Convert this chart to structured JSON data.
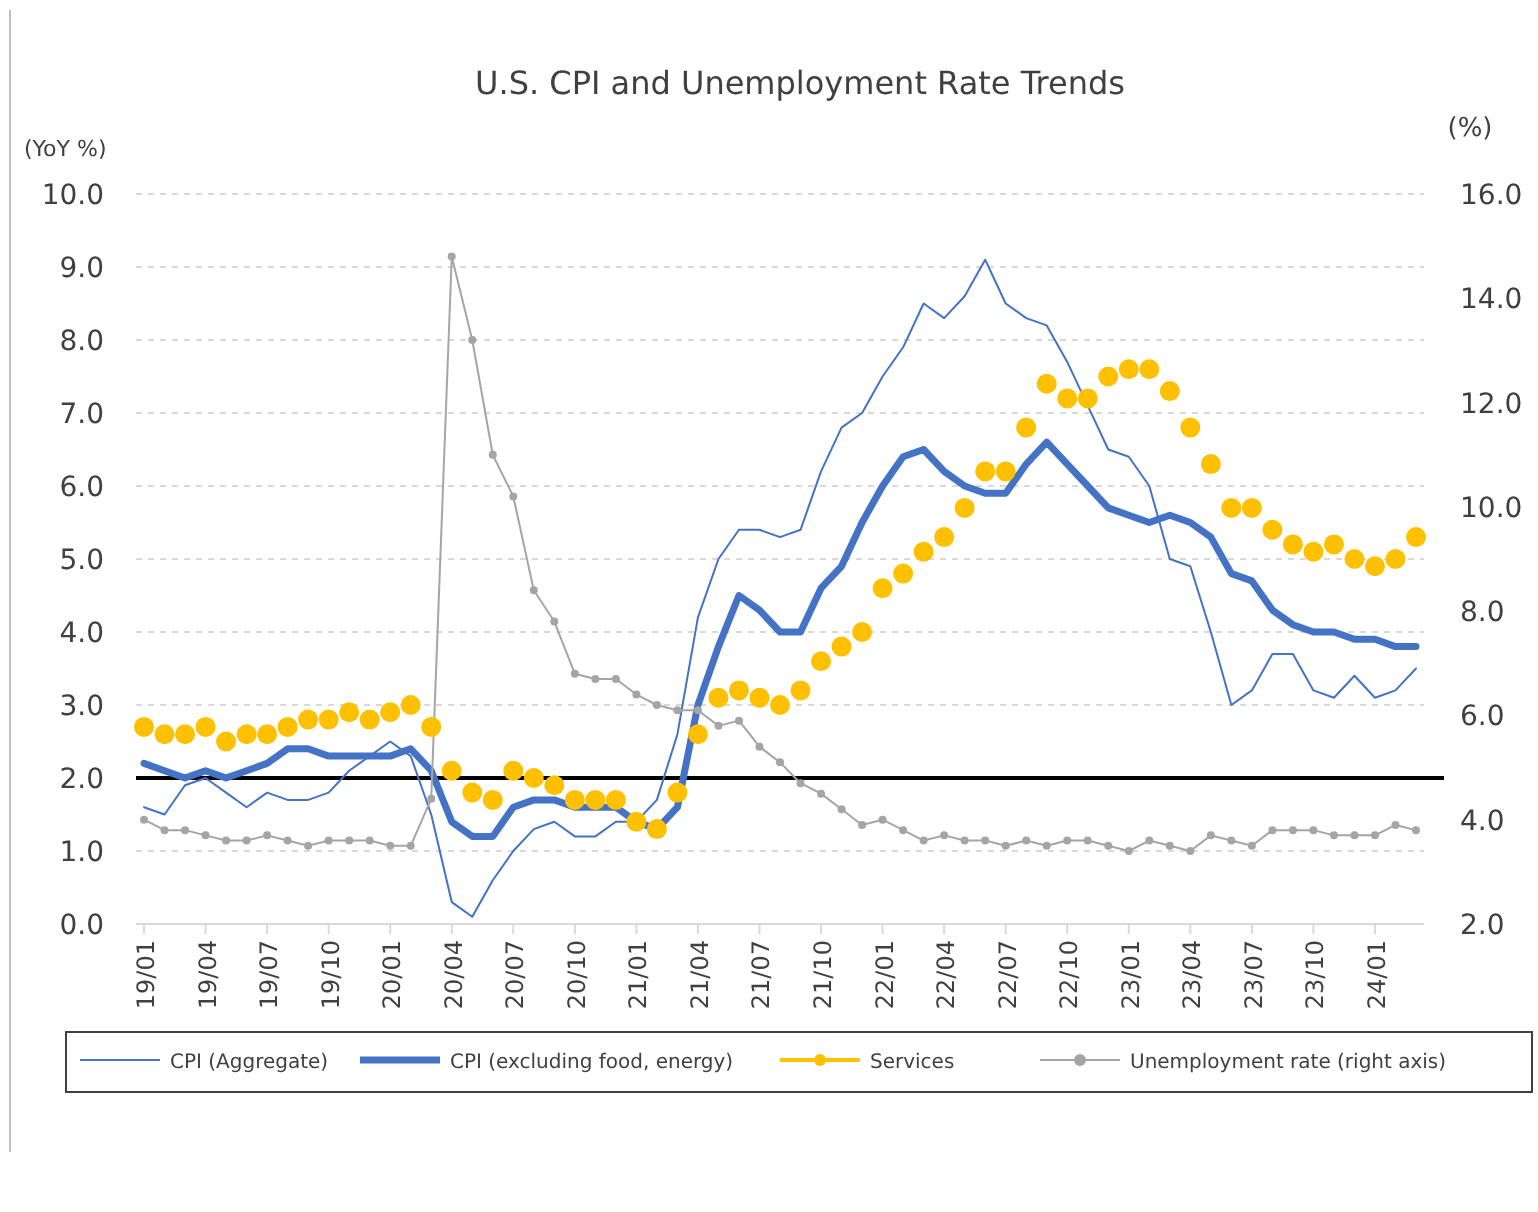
{
  "chart_data": {
    "type": "line",
    "title": "U.S. CPI and Unemployment Rate Trends",
    "ylabel": "(YoY %)",
    "y2label": "(%)",
    "categories": [
      "19/01",
      null,
      null,
      "19/04",
      null,
      null,
      "19/07",
      null,
      null,
      "19/10",
      null,
      null,
      "20/01",
      null,
      null,
      "20/04",
      null,
      null,
      "20/07",
      null,
      null,
      "20/10",
      null,
      null,
      "21/01",
      null,
      null,
      "21/04",
      null,
      null,
      "21/07",
      null,
      null,
      "21/10",
      null,
      null,
      "22/01",
      null,
      null,
      "22/04",
      null,
      null,
      "22/07",
      null,
      null,
      "22/10",
      null,
      null,
      "23/01",
      null,
      null,
      "23/04",
      null,
      null,
      "23/07",
      null,
      null,
      "23/10",
      null,
      null,
      "24/01",
      null,
      null
    ],
    "series": [
      {
        "name": "CPI (Aggregate)",
        "color": "#4472c4",
        "marker": "none",
        "values": [
          1.6,
          1.5,
          1.9,
          2.0,
          1.8,
          1.6,
          1.8,
          1.7,
          1.7,
          1.8,
          2.1,
          2.3,
          2.5,
          2.3,
          1.5,
          0.3,
          0.1,
          0.6,
          1.0,
          1.3,
          1.4,
          1.2,
          1.2,
          1.4,
          1.4,
          1.7,
          2.6,
          4.2,
          5.0,
          5.4,
          5.4,
          5.3,
          5.4,
          6.2,
          6.8,
          7.0,
          7.5,
          7.9,
          8.5,
          8.3,
          8.6,
          9.1,
          8.5,
          8.3,
          8.2,
          7.7,
          7.1,
          6.5,
          6.4,
          6.0,
          5.0,
          4.9,
          4.0,
          3.0,
          3.2,
          3.7,
          3.7,
          3.2,
          3.1,
          3.4,
          3.1,
          3.2,
          3.5
        ]
      },
      {
        "name": "CPI (excluding food, energy)",
        "color": "#4472c4",
        "marker": "none",
        "values": [
          2.2,
          2.1,
          2.0,
          2.1,
          2.0,
          2.1,
          2.2,
          2.4,
          2.4,
          2.3,
          2.3,
          2.3,
          2.3,
          2.4,
          2.1,
          1.4,
          1.2,
          1.2,
          1.6,
          1.7,
          1.7,
          1.6,
          1.6,
          1.6,
          1.4,
          1.3,
          1.6,
          3.0,
          3.8,
          4.5,
          4.3,
          4.0,
          4.0,
          4.6,
          4.9,
          5.5,
          6.0,
          6.4,
          6.5,
          6.2,
          6.0,
          5.9,
          5.9,
          6.3,
          6.6,
          6.3,
          6.0,
          5.7,
          5.6,
          5.5,
          5.6,
          5.5,
          5.3,
          4.8,
          4.7,
          4.3,
          4.1,
          4.0,
          4.0,
          3.9,
          3.9,
          3.8,
          3.8
        ]
      },
      {
        "name": "Services",
        "type": "scatter",
        "color": "#ffc000",
        "marker": "circle",
        "values": [
          2.7,
          2.6,
          2.6,
          2.7,
          2.5,
          2.6,
          2.6,
          2.7,
          2.8,
          2.8,
          2.9,
          2.8,
          2.9,
          3.0,
          2.7,
          2.1,
          1.8,
          1.7,
          2.1,
          2.0,
          1.9,
          1.7,
          1.7,
          1.7,
          1.4,
          1.3,
          1.8,
          2.6,
          3.1,
          3.2,
          3.1,
          3.0,
          3.2,
          3.6,
          3.8,
          4.0,
          4.6,
          4.8,
          5.1,
          5.3,
          5.7,
          6.2,
          6.2,
          6.8,
          7.4,
          7.2,
          7.2,
          7.5,
          7.6,
          7.6,
          7.3,
          6.8,
          6.3,
          5.7,
          5.7,
          5.4,
          5.2,
          5.1,
          5.2,
          5.0,
          4.9,
          5.0,
          5.3
        ]
      },
      {
        "name": "Unemployment rate (right axis)",
        "axis": "y2",
        "color": "#a5a5a5",
        "marker": "circle",
        "values": [
          4.0,
          3.8,
          3.8,
          3.7,
          3.6,
          3.6,
          3.7,
          3.6,
          3.5,
          3.6,
          3.6,
          3.6,
          3.5,
          3.5,
          4.4,
          14.8,
          13.2,
          11.0,
          10.2,
          8.4,
          7.8,
          6.8,
          6.7,
          6.7,
          6.4,
          6.2,
          6.1,
          6.1,
          5.8,
          5.9,
          5.4,
          5.1,
          4.7,
          4.5,
          4.2,
          3.9,
          4.0,
          3.8,
          3.6,
          3.7,
          3.6,
          3.6,
          3.5,
          3.6,
          3.5,
          3.6,
          3.6,
          3.5,
          3.4,
          3.6,
          3.5,
          3.4,
          3.7,
          3.6,
          3.5,
          3.8,
          3.8,
          3.8,
          3.7,
          3.7,
          3.7,
          3.9,
          3.8
        ]
      }
    ],
    "ylim": [
      0,
      10
    ],
    "yticks": [
      {
        "value": 0,
        "label": "0.0"
      },
      {
        "value": 1,
        "label": "1.0"
      },
      {
        "value": 2,
        "label": "2.0"
      },
      {
        "value": 3,
        "label": "3.0"
      },
      {
        "value": 4,
        "label": "4.0"
      },
      {
        "value": 5,
        "label": "5.0"
      },
      {
        "value": 6,
        "label": "6.0"
      },
      {
        "value": 7,
        "label": "7.0"
      },
      {
        "value": 8,
        "label": "8.0"
      },
      {
        "value": 9,
        "label": "9.0"
      },
      {
        "value": 10,
        "label": "10.0"
      }
    ],
    "y2lim": [
      2,
      16
    ],
    "y2ticks": [
      {
        "value": 2,
        "label": "2.0"
      },
      {
        "value": 4,
        "label": "4.0"
      },
      {
        "value": 6,
        "label": "6.0"
      },
      {
        "value": 8,
        "label": "8.0"
      },
      {
        "value": 10,
        "label": "10.0"
      },
      {
        "value": 12,
        "label": "12.0"
      },
      {
        "value": 14,
        "label": "14.0"
      },
      {
        "value": 16,
        "label": "16.0"
      }
    ],
    "ref_lines": [
      {
        "axis": "y",
        "value": 2,
        "color": "#000000"
      }
    ],
    "grid": "y",
    "legend": "bottom"
  }
}
